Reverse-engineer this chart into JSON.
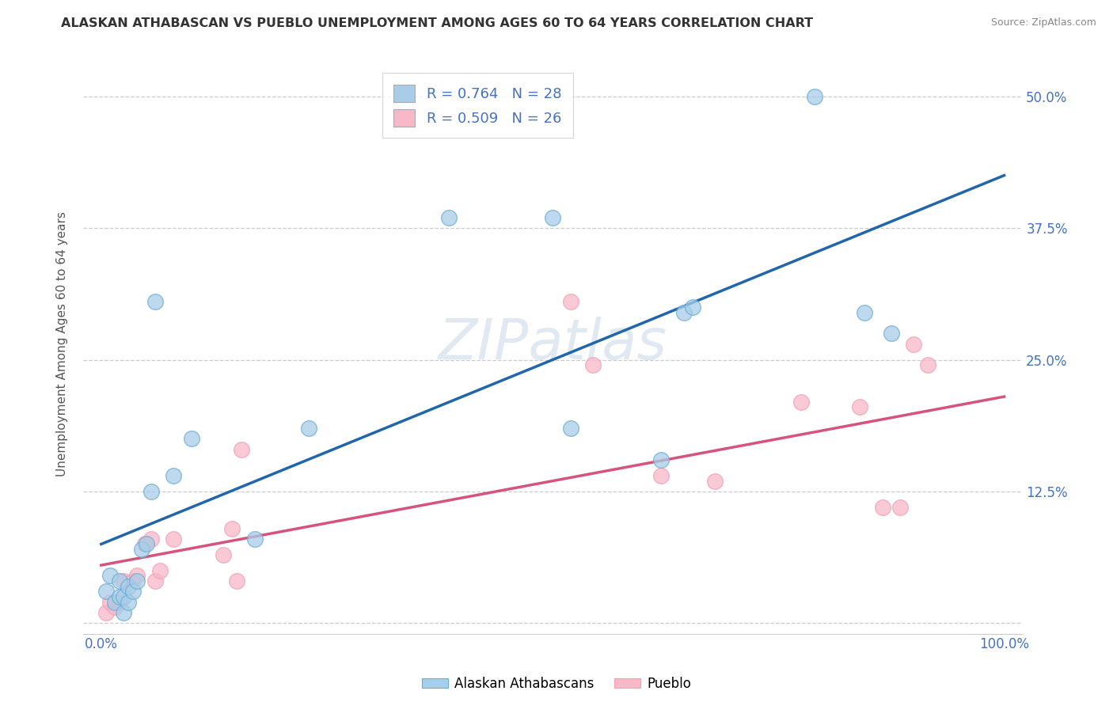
{
  "title": "ALASKAN ATHABASCAN VS PUEBLO UNEMPLOYMENT AMONG AGES 60 TO 64 YEARS CORRELATION CHART",
  "source": "Source: ZipAtlas.com",
  "ylabel": "Unemployment Among Ages 60 to 64 years",
  "xlabel": "",
  "xlim": [
    -0.02,
    1.02
  ],
  "ylim": [
    -0.01,
    0.54
  ],
  "xticks": [
    0.0,
    0.25,
    0.5,
    0.75,
    1.0
  ],
  "xticklabels": [
    "0.0%",
    "",
    "",
    "",
    "100.0%"
  ],
  "yticks": [
    0.0,
    0.125,
    0.25,
    0.375,
    0.5
  ],
  "yticklabels_left": [
    "",
    "",
    "",
    "",
    ""
  ],
  "yticklabels_right": [
    "",
    "12.5%",
    "25.0%",
    "37.5%",
    "50.0%"
  ],
  "blue_color": "#a8cde8",
  "pink_color": "#f7b8c8",
  "blue_edge_color": "#6aaed6",
  "pink_edge_color": "#f4a0b5",
  "blue_line_color": "#2166ac",
  "pink_line_color": "#d6547c",
  "legend_blue_label": "R = 0.764   N = 28",
  "legend_pink_label": "R = 0.509   N = 26",
  "legend_text_color": "#4472c4",
  "watermark": "ZIPatlas",
  "blue_scatter_x": [
    0.005,
    0.01,
    0.015,
    0.02,
    0.02,
    0.025,
    0.025,
    0.03,
    0.03,
    0.035,
    0.04,
    0.045,
    0.05,
    0.055,
    0.06,
    0.08,
    0.1,
    0.17,
    0.23,
    0.385,
    0.5,
    0.52,
    0.62,
    0.645,
    0.655,
    0.79,
    0.845,
    0.875
  ],
  "blue_scatter_y": [
    0.03,
    0.045,
    0.02,
    0.025,
    0.04,
    0.01,
    0.025,
    0.02,
    0.035,
    0.03,
    0.04,
    0.07,
    0.075,
    0.125,
    0.305,
    0.14,
    0.175,
    0.08,
    0.185,
    0.385,
    0.385,
    0.185,
    0.155,
    0.295,
    0.3,
    0.5,
    0.295,
    0.275
  ],
  "pink_scatter_x": [
    0.005,
    0.01,
    0.015,
    0.02,
    0.025,
    0.035,
    0.04,
    0.048,
    0.055,
    0.06,
    0.065,
    0.08,
    0.135,
    0.145,
    0.15,
    0.155,
    0.52,
    0.545,
    0.62,
    0.68,
    0.775,
    0.84,
    0.865,
    0.885,
    0.9,
    0.915
  ],
  "pink_scatter_y": [
    0.01,
    0.02,
    0.015,
    0.02,
    0.04,
    0.04,
    0.045,
    0.075,
    0.08,
    0.04,
    0.05,
    0.08,
    0.065,
    0.09,
    0.04,
    0.165,
    0.305,
    0.245,
    0.14,
    0.135,
    0.21,
    0.205,
    0.11,
    0.11,
    0.265,
    0.245
  ],
  "blue_trend_x": [
    0.0,
    1.0
  ],
  "blue_trend_y": [
    0.075,
    0.425
  ],
  "pink_trend_x": [
    0.0,
    1.0
  ],
  "pink_trend_y": [
    0.055,
    0.215
  ],
  "figsize": [
    14.06,
    8.92
  ],
  "dpi": 100
}
